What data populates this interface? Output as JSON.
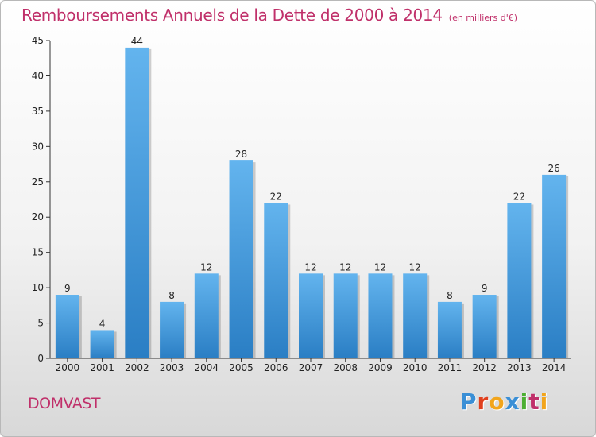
{
  "header": {
    "title": "Remboursements Annuels de la Dette de 2000 à 2014",
    "subtitle": "(en milliers d'€)"
  },
  "footer": {
    "commune": "DOMVAST",
    "logo": "Proxiti",
    "logo_colors": [
      "#3a8fd6",
      "#e0401e",
      "#f2a51c",
      "#3a8fd6",
      "#4caf32",
      "#c0306a",
      "#f2a51c"
    ]
  },
  "chart_data": {
    "type": "bar",
    "title": "Remboursements Annuels de la Dette de 2000 à 2014",
    "subtitle": "(en milliers d'€)",
    "categories": [
      "2000",
      "2001",
      "2002",
      "2003",
      "2004",
      "2005",
      "2006",
      "2007",
      "2008",
      "2009",
      "2010",
      "2011",
      "2012",
      "2013",
      "2014"
    ],
    "values": [
      9,
      4,
      44,
      8,
      12,
      28,
      22,
      12,
      12,
      12,
      12,
      8,
      9,
      22,
      26
    ],
    "ylim": [
      0,
      45
    ],
    "yticks": [
      0,
      5,
      10,
      15,
      20,
      25,
      30,
      35,
      40,
      45
    ],
    "grid": false,
    "colors": {
      "bar_light": "#5fb0ea",
      "bar_dark": "#2a7fc4",
      "title": "#c0306a"
    }
  }
}
